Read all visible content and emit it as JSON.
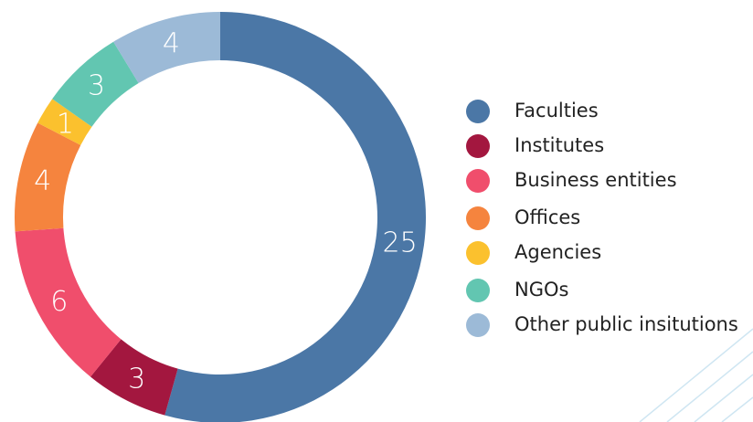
{
  "chart_data": {
    "type": "donut",
    "categories": [
      "Faculties",
      "Institutes",
      "Business entities",
      "Offices",
      "Agencies",
      "NGOs",
      "Other public insitutions"
    ],
    "values": [
      25,
      3,
      6,
      4,
      1,
      3,
      4
    ],
    "colors": [
      "#4b77a6",
      "#a3173f",
      "#f04e6c",
      "#f5843e",
      "#fbc12e",
      "#62c6b1",
      "#9cbad7"
    ],
    "legend": "right"
  }
}
